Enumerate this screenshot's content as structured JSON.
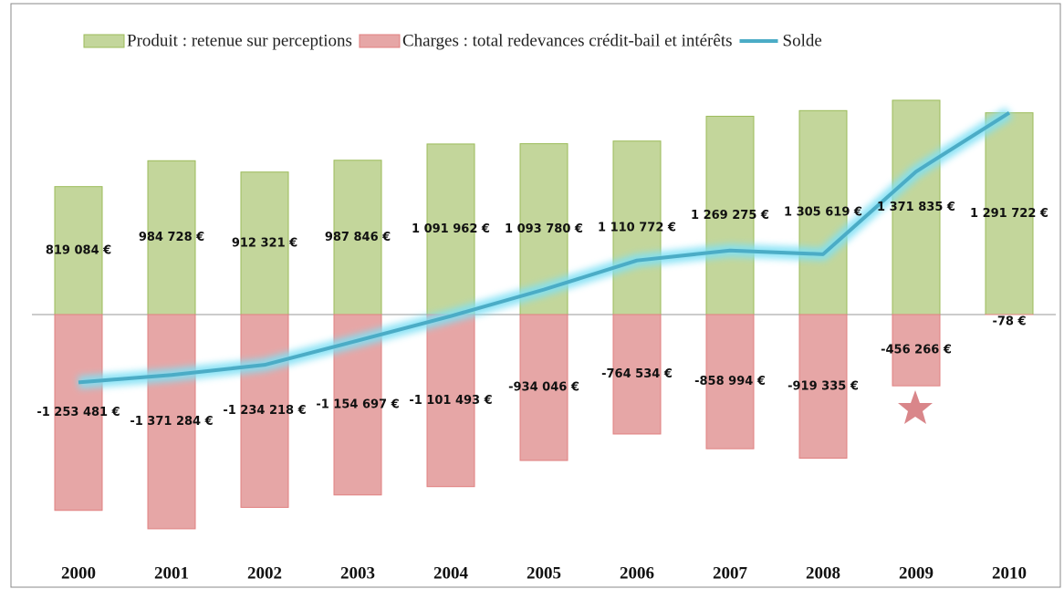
{
  "chart_data": {
    "type": "bar",
    "categories": [
      "2000",
      "2001",
      "2002",
      "2003",
      "2004",
      "2005",
      "2006",
      "2007",
      "2008",
      "2009",
      "2010"
    ],
    "series": [
      {
        "name": "Produit : retenue sur perceptions",
        "color": "#c3d69b",
        "type": "bar",
        "values": [
          819084,
          984728,
          912321,
          987846,
          1091962,
          1093780,
          1110772,
          1269275,
          1305619,
          1371835,
          1291722
        ],
        "value_labels": [
          "819 084 €",
          "984 728 €",
          "912 321 €",
          "987 846 €",
          "1 091 962 €",
          "1 093 780 €",
          "1 110 772 €",
          "1 269 275 €",
          "1 305 619 €",
          "1 371 835 €",
          "1 291 722 €"
        ]
      },
      {
        "name": "Charges : total redevances crédit-bail et intérêts",
        "color": "#e6a6a6",
        "type": "bar",
        "values": [
          -1253481,
          -1371284,
          -1234218,
          -1154697,
          -1101493,
          -934046,
          -764534,
          -858994,
          -919335,
          -456266,
          -78
        ],
        "value_labels": [
          "-1 253 481 €",
          "-1 371 284 €",
          "-1 234 218 €",
          "-1 154 697 €",
          "-1 101 493 €",
          "-934 046 €",
          "-764 534 €",
          "-858 994 €",
          "-919 335 €",
          "-456 266 €",
          "-78 €"
        ]
      },
      {
        "name": "Solde",
        "color": "#4bacc6",
        "type": "line",
        "values": [
          -434397,
          -386556,
          -321897,
          -166851,
          -9531,
          159734,
          346238,
          410281,
          386284,
          915569,
          1291644
        ]
      }
    ],
    "ylim": [
      -1500000,
      1500000
    ],
    "legend": "top"
  }
}
